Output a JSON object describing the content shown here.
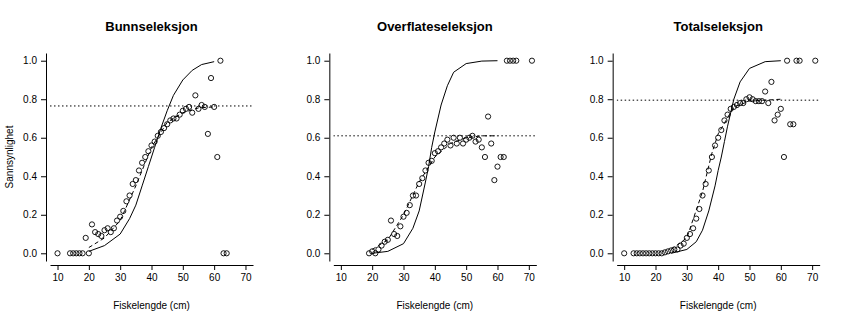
{
  "chart_data": [
    {
      "type": "scatter",
      "title": "Bunnseleksjon",
      "x_label": "Fiskelengde (cm)",
      "y_label": "Sannsynlighet",
      "xlim": [
        7.6,
        72.4
      ],
      "ylim": [
        -0.04,
        1.04
      ],
      "xticks": [
        10,
        20,
        30,
        40,
        50,
        60,
        70
      ],
      "yticks": [
        {
          "value": 0,
          "label": "0.0"
        },
        {
          "value": 0.2,
          "label": "0.2"
        },
        {
          "value": 0.4,
          "label": "0.4"
        },
        {
          "value": 0.6,
          "label": "0.6"
        },
        {
          "value": 0.8,
          "label": "0.8"
        },
        {
          "value": 1,
          "label": "1.0"
        }
      ],
      "series": [
        {
          "type": "scatter",
          "marker": "circle",
          "color": "#000000",
          "x": [
            10,
            14,
            15,
            16,
            17,
            18,
            19,
            20,
            21,
            22,
            23,
            24,
            25,
            26,
            27,
            28,
            29,
            30,
            31,
            32,
            33,
            34,
            35,
            36,
            37,
            38,
            39,
            40,
            41,
            42,
            43,
            44,
            45,
            46,
            47,
            48,
            49,
            50,
            51,
            52,
            53,
            54,
            55,
            56,
            57,
            58,
            59,
            60,
            61,
            62,
            63,
            64
          ],
          "values": [
            0,
            0,
            0,
            0,
            0,
            0,
            0.08,
            0.0,
            0.15,
            0.11,
            0.1,
            0.09,
            0.12,
            0.13,
            0.11,
            0.13,
            0.17,
            0.19,
            0.22,
            0.27,
            0.3,
            0.36,
            0.38,
            0.43,
            0.47,
            0.5,
            0.53,
            0.56,
            0.58,
            0.61,
            0.63,
            0.65,
            0.67,
            0.69,
            0.7,
            0.7,
            0.72,
            0.74,
            0.75,
            0.76,
            0.73,
            0.82,
            0.75,
            0.77,
            0.76,
            0.62,
            0.91,
            0.76,
            0.5,
            1.0,
            0.0,
            0.0
          ]
        },
        {
          "type": "line",
          "line_style": "dashed",
          "color": "#000000",
          "x": [
            20,
            25,
            30,
            35,
            40,
            45,
            50,
            55,
            60
          ],
          "values": [
            0.03,
            0.08,
            0.17,
            0.35,
            0.55,
            0.68,
            0.73,
            0.755,
            0.76
          ]
        },
        {
          "type": "line",
          "line_style": "solid",
          "color": "#000000",
          "x": [
            20,
            25,
            30,
            33,
            35,
            37,
            39,
            40,
            41,
            43,
            45,
            47,
            50,
            53,
            56,
            60
          ],
          "values": [
            0.01,
            0.04,
            0.1,
            0.18,
            0.25,
            0.35,
            0.45,
            0.5,
            0.55,
            0.65,
            0.74,
            0.82,
            0.9,
            0.95,
            0.98,
            0.995
          ]
        },
        {
          "type": "line",
          "line_style": "dotted",
          "color": "#000000",
          "x": [
            7.6,
            72.4
          ],
          "values": [
            0.765,
            0.765
          ]
        }
      ]
    },
    {
      "type": "scatter",
      "title": "Overflateseleksjon",
      "x_label": "Fiskelengde (cm)",
      "xlim": [
        7.6,
        72.4
      ],
      "ylim": [
        -0.04,
        1.04
      ],
      "xticks": [
        10,
        20,
        30,
        40,
        50,
        60,
        70
      ],
      "yticks": [
        {
          "value": 0,
          "label": "0.0"
        },
        {
          "value": 0.2,
          "label": "0.2"
        },
        {
          "value": 0.4,
          "label": "0.4"
        },
        {
          "value": 0.6,
          "label": "0.6"
        },
        {
          "value": 0.8,
          "label": "0.8"
        },
        {
          "value": 1,
          "label": "1.0"
        }
      ],
      "series": [
        {
          "type": "scatter",
          "marker": "circle",
          "color": "#000000",
          "x": [
            19,
            20,
            21,
            22,
            23,
            24,
            25,
            26,
            27,
            28,
            29,
            30,
            31,
            32,
            33,
            34,
            35,
            36,
            37,
            38,
            39,
            40,
            41,
            42,
            43,
            44,
            45,
            46,
            47,
            48,
            49,
            50,
            51,
            52,
            53,
            54,
            55,
            56,
            57,
            58,
            59,
            60,
            61,
            62,
            63,
            64,
            65,
            66,
            71
          ],
          "values": [
            0.0,
            0.01,
            0.0,
            0.02,
            0.04,
            0.06,
            0.07,
            0.17,
            0.1,
            0.09,
            0.14,
            0.19,
            0.21,
            0.25,
            0.3,
            0.3,
            0.36,
            0.39,
            0.43,
            0.47,
            0.48,
            0.52,
            0.53,
            0.55,
            0.57,
            0.59,
            0.56,
            0.6,
            0.57,
            0.6,
            0.57,
            0.59,
            0.6,
            0.61,
            0.58,
            0.59,
            0.55,
            0.5,
            0.71,
            0.57,
            0.38,
            0.45,
            0.5,
            0.5,
            1.0,
            1.0,
            1.0,
            1.0,
            1.0
          ]
        },
        {
          "type": "line",
          "line_style": "dashed",
          "color": "#000000",
          "x": [
            20,
            25,
            30,
            35,
            40,
            45,
            50,
            55,
            60
          ],
          "values": [
            0.02,
            0.07,
            0.2,
            0.37,
            0.5,
            0.57,
            0.6,
            0.61,
            0.61
          ]
        },
        {
          "type": "line",
          "line_style": "solid",
          "color": "#000000",
          "x": [
            20,
            25,
            30,
            33,
            35,
            37,
            38,
            39,
            40,
            42,
            44,
            46,
            50,
            55,
            60
          ],
          "values": [
            0.0,
            0.01,
            0.05,
            0.13,
            0.22,
            0.37,
            0.45,
            0.55,
            0.63,
            0.77,
            0.87,
            0.94,
            0.985,
            0.998,
            1.0
          ]
        },
        {
          "type": "line",
          "line_style": "dotted",
          "color": "#000000",
          "x": [
            7.6,
            72.4
          ],
          "values": [
            0.61,
            0.61
          ]
        }
      ]
    },
    {
      "type": "scatter",
      "title": "Totalseleksjon",
      "x_label": "Fiskelengde (cm)",
      "xlim": [
        7.6,
        72.4
      ],
      "ylim": [
        -0.04,
        1.04
      ],
      "xticks": [
        10,
        20,
        30,
        40,
        50,
        60,
        70
      ],
      "yticks": [
        {
          "value": 0,
          "label": "0.0"
        },
        {
          "value": 0.2,
          "label": "0.2"
        },
        {
          "value": 0.4,
          "label": "0.4"
        },
        {
          "value": 0.6,
          "label": "0.6"
        },
        {
          "value": 0.8,
          "label": "0.8"
        },
        {
          "value": 1,
          "label": "1.0"
        }
      ],
      "series": [
        {
          "type": "scatter",
          "marker": "circle",
          "color": "#000000",
          "x": [
            10,
            13,
            14,
            15,
            16,
            17,
            18,
            19,
            20,
            21,
            22,
            23,
            24,
            25,
            26,
            27,
            28,
            29,
            30,
            31,
            32,
            33,
            34,
            35,
            36,
            37,
            38,
            39,
            40,
            41,
            42,
            43,
            44,
            45,
            46,
            47,
            48,
            49,
            50,
            51,
            52,
            53,
            54,
            55,
            56,
            57,
            58,
            59,
            60,
            61,
            62,
            63,
            64,
            65,
            66,
            71
          ],
          "values": [
            0,
            0,
            0,
            0,
            0,
            0,
            0,
            0,
            0,
            0,
            0,
            0.005,
            0.01,
            0.015,
            0.02,
            0.02,
            0.04,
            0.05,
            0.08,
            0.1,
            0.13,
            0.18,
            0.23,
            0.3,
            0.36,
            0.43,
            0.5,
            0.56,
            0.6,
            0.64,
            0.69,
            0.72,
            0.75,
            0.76,
            0.77,
            0.78,
            0.78,
            0.8,
            0.81,
            0.8,
            0.79,
            0.79,
            0.79,
            0.84,
            0.78,
            0.89,
            0.69,
            0.72,
            0.75,
            0.5,
            1.0,
            0.67,
            0.67,
            1.0,
            1.0,
            1.0
          ]
        },
        {
          "type": "line",
          "line_style": "dashed",
          "color": "#000000",
          "x": [
            25,
            30,
            35,
            38,
            40,
            45,
            50,
            55,
            60
          ],
          "values": [
            0.02,
            0.08,
            0.32,
            0.52,
            0.62,
            0.76,
            0.79,
            0.795,
            0.8
          ]
        },
        {
          "type": "line",
          "line_style": "solid",
          "color": "#000000",
          "x": [
            25,
            30,
            33,
            35,
            37,
            39,
            40,
            41,
            42,
            43,
            45,
            47,
            50,
            55,
            60
          ],
          "values": [
            0.0,
            0.02,
            0.06,
            0.12,
            0.22,
            0.35,
            0.43,
            0.5,
            0.58,
            0.66,
            0.8,
            0.89,
            0.96,
            0.995,
            1.0
          ]
        },
        {
          "type": "line",
          "line_style": "dotted",
          "color": "#000000",
          "x": [
            7.6,
            72.4
          ],
          "values": [
            0.795,
            0.795
          ]
        }
      ]
    }
  ]
}
